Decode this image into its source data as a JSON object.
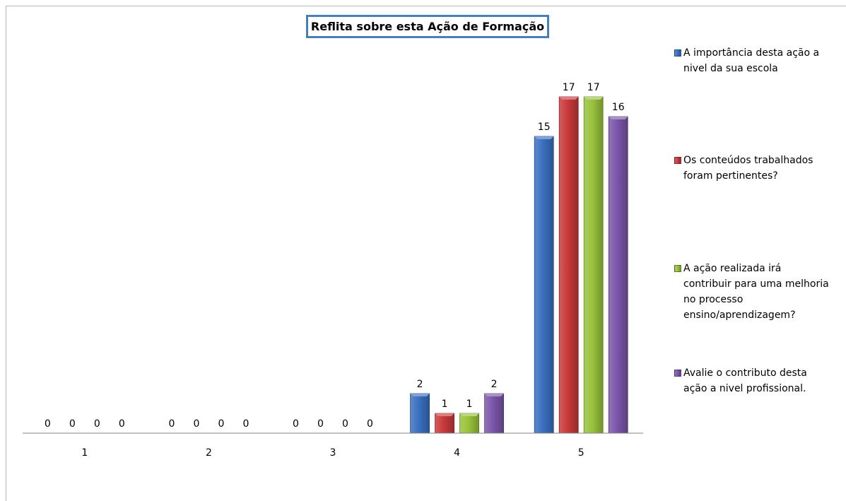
{
  "chart_data": {
    "type": "bar",
    "title": "Reflita sobre esta Ação de Formação",
    "xlabel": "",
    "ylabel": "",
    "ylim": [
      0,
      18
    ],
    "grid": false,
    "legend_position": "right",
    "categories": [
      "1",
      "2",
      "3",
      "4",
      "5"
    ],
    "series": [
      {
        "name": "A importância desta ação a nivel da sua escola",
        "color": "#3a6fc0",
        "values": [
          0,
          0,
          0,
          2,
          15
        ]
      },
      {
        "name": "Os conteúdos trabalhados foram pertinentes?",
        "color": "#c8393a",
        "values": [
          0,
          0,
          0,
          1,
          17
        ]
      },
      {
        "name": "A ação realizada irá contribuir para uma melhoria no processo ensino/aprendizagem?",
        "color": "#98c23b",
        "values": [
          0,
          0,
          0,
          1,
          17
        ]
      },
      {
        "name": "Avalie o contributo desta ação a nivel profissional.",
        "color": "#7b55a8",
        "values": [
          0,
          0,
          0,
          2,
          16
        ]
      }
    ]
  }
}
